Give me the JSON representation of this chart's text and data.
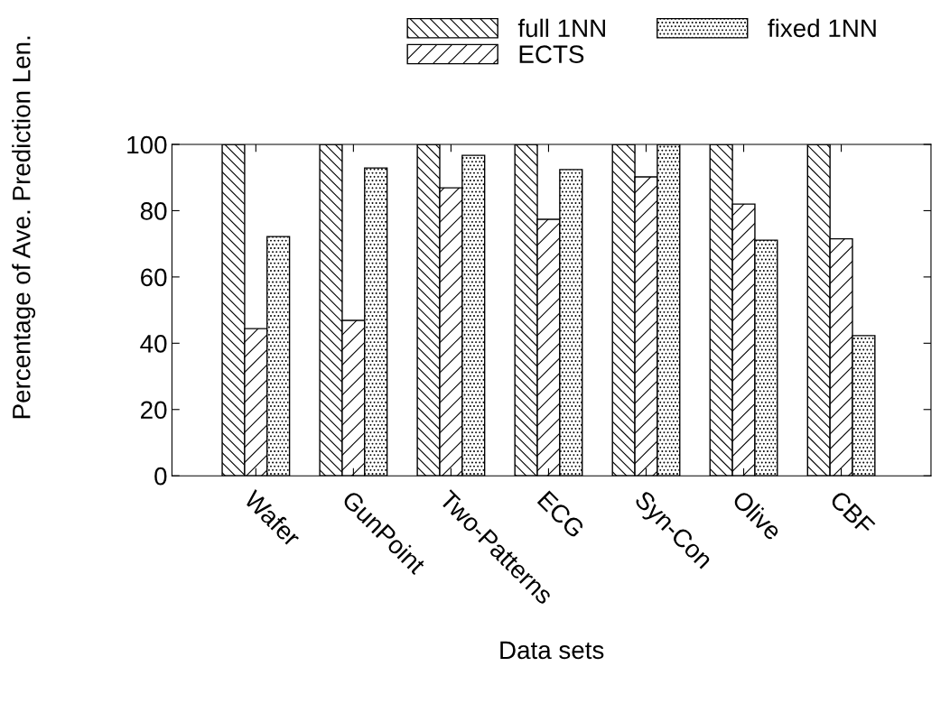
{
  "chart_data": {
    "type": "bar",
    "xlabel": "Data sets",
    "ylabel": "Percentage of Ave. Prediction Len.",
    "categories": [
      "Wafer",
      "GunPoint",
      "Two-Patterns",
      "ECG",
      "Syn-Con",
      "Olive",
      "CBF"
    ],
    "series": [
      {
        "name": "full 1NN",
        "color": "#000000",
        "values": [
          100,
          100,
          100,
          100,
          100,
          100,
          100
        ]
      },
      {
        "name": "ECTS",
        "color": "#000000",
        "values": [
          44.4,
          46.9,
          86.9,
          77.4,
          90.2,
          82,
          71.5
        ]
      },
      {
        "name": "fixed 1NN",
        "color": "#000000",
        "values": [
          72.2,
          92.9,
          96.7,
          92.4,
          100,
          71.1,
          42.3
        ]
      }
    ],
    "ylim": [
      0,
      100
    ],
    "yticks": [
      0,
      20,
      40,
      60,
      80,
      100
    ],
    "legend": "top",
    "grid": false
  }
}
